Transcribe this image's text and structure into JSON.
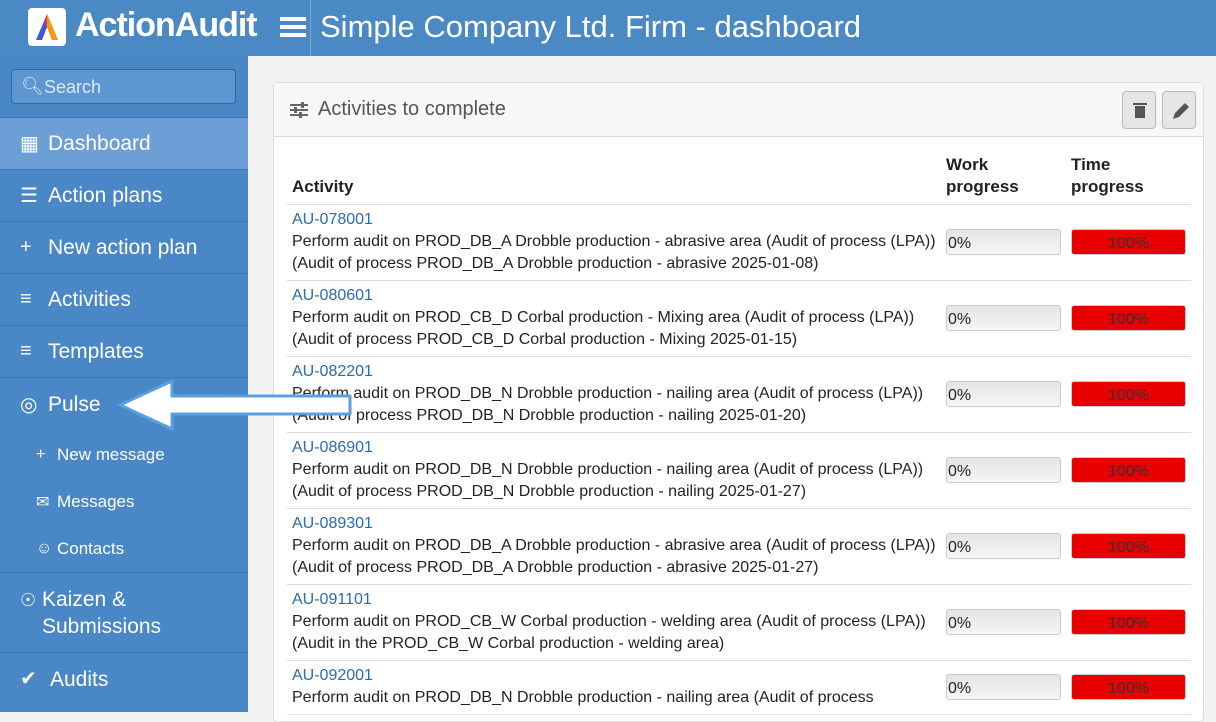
{
  "header": {
    "brand": "ActionAudit",
    "title": "Simple Company Ltd. Firm - dashboard"
  },
  "sidebar": {
    "search": "Search",
    "items": [
      "Dashboard",
      "Action plans",
      "New action plan",
      "Activities",
      "Templates",
      "Pulse"
    ],
    "sub_items": [
      "New message",
      "Messages",
      "Contacts"
    ],
    "items_after": [
      "Kaizen & Submissions",
      "Audits"
    ]
  },
  "panel": {
    "title": "Activities to complete",
    "columns": [
      "Activity",
      "Work progress",
      "Time progress"
    ],
    "rows": [
      {
        "id": "AU-078001",
        "description": "Perform audit on PROD_DB_A Drobble production - abrasive area (Audit of process (LPA)) (Audit of process PROD_DB_A Drobble production - abrasive 2025-01-08)",
        "work": {
          "value": 0,
          "label": "0%"
        },
        "time": {
          "value": 100,
          "label": "100%"
        }
      },
      {
        "id": "AU-080601",
        "description": "Perform audit on PROD_CB_D Corbal production - Mixing area (Audit of process (LPA)) (Audit of process PROD_CB_D Corbal production - Mixing 2025-01-15)",
        "work": {
          "value": 0,
          "label": "0%"
        },
        "time": {
          "value": 100,
          "label": "100%"
        }
      },
      {
        "id": "AU-082201",
        "description": "Perform audit on PROD_DB_N Drobble production - nailing area (Audit of process (LPA)) (Audit of process PROD_DB_N Drobble production - nailing 2025-01-20)",
        "work": {
          "value": 0,
          "label": "0%"
        },
        "time": {
          "value": 100,
          "label": "100%"
        }
      },
      {
        "id": "AU-086901",
        "description": "Perform audit on PROD_DB_N Drobble production - nailing area (Audit of process (LPA)) (Audit of process PROD_DB_N Drobble production - nailing 2025-01-27)",
        "work": {
          "value": 0,
          "label": "0%"
        },
        "time": {
          "value": 100,
          "label": "100%"
        }
      },
      {
        "id": "AU-089301",
        "description": "Perform audit on PROD_DB_A Drobble production - abrasive area (Audit of process (LPA)) (Audit of process PROD_DB_A Drobble production - abrasive 2025-01-27)",
        "work": {
          "value": 0,
          "label": "0%"
        },
        "time": {
          "value": 100,
          "label": "100%"
        }
      },
      {
        "id": "AU-091101",
        "description": "Perform audit on PROD_CB_W Corbal production - welding area (Audit of process (LPA)) (Audit in the PROD_CB_W Corbal production - welding area)",
        "work": {
          "value": 0,
          "label": "0%"
        },
        "time": {
          "value": 100,
          "label": "100%"
        }
      },
      {
        "id": "AU-092001",
        "description": "Perform audit on PROD_DB_N Drobble production - nailing area (Audit of process",
        "work": {
          "value": 0,
          "label": "0%"
        },
        "time": {
          "value": 100,
          "label": "100%"
        }
      }
    ]
  }
}
